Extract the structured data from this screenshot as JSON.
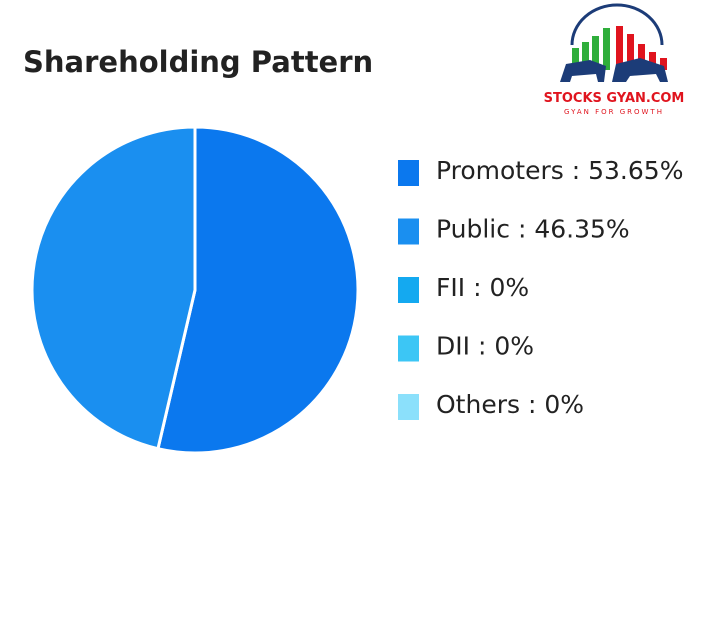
{
  "chart_data": {
    "type": "pie",
    "title": "Shareholding Pattern",
    "categories": [
      "Promoters",
      "Public",
      "FII",
      "DII",
      "Others"
    ],
    "values": [
      53.65,
      46.35,
      0,
      0,
      0
    ],
    "value_labels": [
      "53.65%",
      "46.35%",
      "0%",
      "0%",
      "0%"
    ],
    "legend_separator": " : ",
    "colors": [
      "#0b78ee",
      "#1a8ff0",
      "#14a9f0",
      "#3cc6f5",
      "#8be0fb"
    ],
    "legend": "right"
  },
  "logo": {
    "title": "STOCKS GYAN.COM",
    "tagline": "GYAN FOR GROWTH"
  }
}
